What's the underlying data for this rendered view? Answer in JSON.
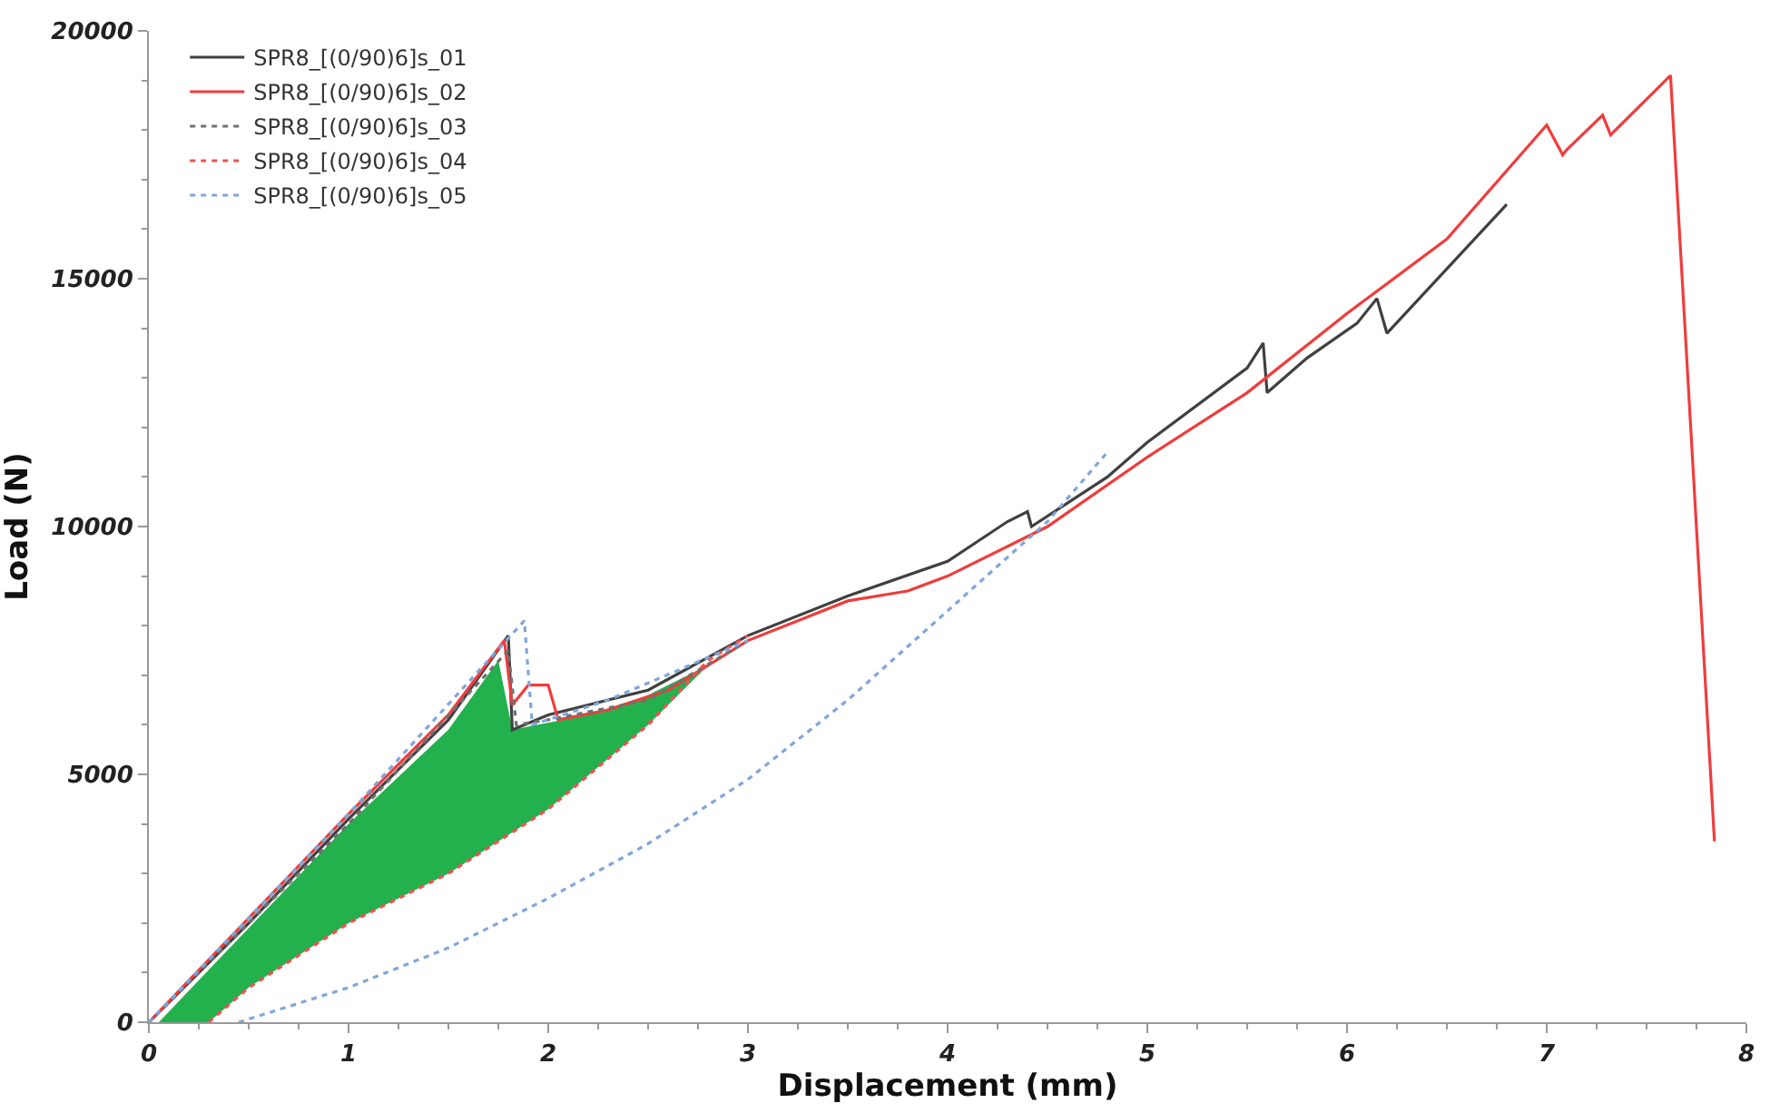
{
  "chart_data": {
    "type": "line",
    "xlabel": "Displacement (mm)",
    "ylabel": "Load (N)",
    "xlim": [
      0,
      8
    ],
    "xticks": [
      0,
      1,
      2,
      3,
      4,
      5,
      6,
      7,
      8
    ],
    "ylim": [
      0,
      20000
    ],
    "yticks": [
      0,
      5000,
      10000,
      15000,
      20000
    ],
    "legend": "top left",
    "marker": "none",
    "series": [
      {
        "type": "area",
        "color": "#22b14c",
        "x": [
          0.05,
          0.5,
          1,
          1.5,
          1.75,
          1.82,
          2.2,
          2.5,
          2.8,
          2.5,
          2,
          1.5,
          1,
          0.5,
          0.3,
          0.05
        ],
        "values": [
          0,
          1900,
          4000,
          5900,
          7300,
          5900,
          6200,
          6600,
          7200,
          6000,
          4300,
          3000,
          2000,
          700,
          0,
          0
        ]
      },
      {
        "name": "SPR8_[(0/90)6]s_01",
        "color": "#404040",
        "line_style": "solid",
        "x": [
          0,
          0.5,
          1,
          1.5,
          1.8,
          1.82,
          2,
          2.2,
          2.5,
          3,
          3.5,
          4,
          4.3,
          4.4,
          4.42,
          4.8,
          5,
          5.5,
          5.58,
          5.6,
          5.8,
          6.05,
          6.15,
          6.2,
          6.5,
          6.8
        ],
        "values": [
          0,
          2000,
          4100,
          6100,
          7800,
          5900,
          6200,
          6400,
          6700,
          7800,
          8600,
          9300,
          10100,
          10300,
          10000,
          11000,
          11700,
          13200,
          13700,
          12700,
          13400,
          14100,
          14600,
          13900,
          15200,
          16500
        ]
      },
      {
        "name": "SPR8_[(0/90)6]s_02",
        "color": "#f03c3c",
        "line_style": "solid",
        "x": [
          0,
          0.5,
          1,
          1.5,
          1.78,
          1.82,
          1.9,
          2,
          2.05,
          2.3,
          2.6,
          3,
          3.5,
          3.8,
          4,
          4.5,
          5,
          5.5,
          6,
          6.5,
          7,
          7.08,
          7.1,
          7.28,
          7.32,
          7.62,
          7.84
        ],
        "values": [
          0,
          2100,
          4200,
          6200,
          7700,
          6400,
          6800,
          6800,
          6100,
          6300,
          6700,
          7700,
          8500,
          8700,
          9000,
          10000,
          11400,
          12700,
          14300,
          15800,
          18100,
          17500,
          17600,
          18300,
          17900,
          19100,
          3650
        ]
      },
      {
        "name": "SPR8_[(0/90)6]s_03",
        "color": "#707070",
        "line_style": "dotted",
        "x": [
          0,
          1,
          1.8,
          1.84,
          2,
          2.5,
          3
        ],
        "values": [
          0,
          4000,
          7500,
          6000,
          6100,
          6500,
          7700
        ]
      },
      {
        "name": "SPR8_[(0/90)6]s_04",
        "color": "#f05050",
        "line_style": "dotted",
        "x": [
          0.3,
          0.5,
          1,
          1.5,
          2,
          2.5,
          2.8,
          3
        ],
        "values": [
          0,
          700,
          2000,
          3000,
          4300,
          6000,
          7300,
          7800
        ]
      },
      {
        "color": "#7fa6dc",
        "line_style": "dotted",
        "x": [
          0,
          1,
          1.88,
          1.92,
          2.3,
          3
        ],
        "values": [
          0,
          4200,
          8100,
          6000,
          6500,
          7700
        ]
      },
      {
        "name": "SPR8_[(0/90)6]s_05",
        "color": "#7fa6dc",
        "line_style": "dotted",
        "x": [
          0.45,
          1,
          1.5,
          2,
          2.5,
          3,
          3.5,
          4,
          4.5,
          4.8
        ],
        "values": [
          0,
          700,
          1500,
          2500,
          3600,
          4900,
          6500,
          8300,
          10100,
          11500
        ]
      }
    ]
  }
}
